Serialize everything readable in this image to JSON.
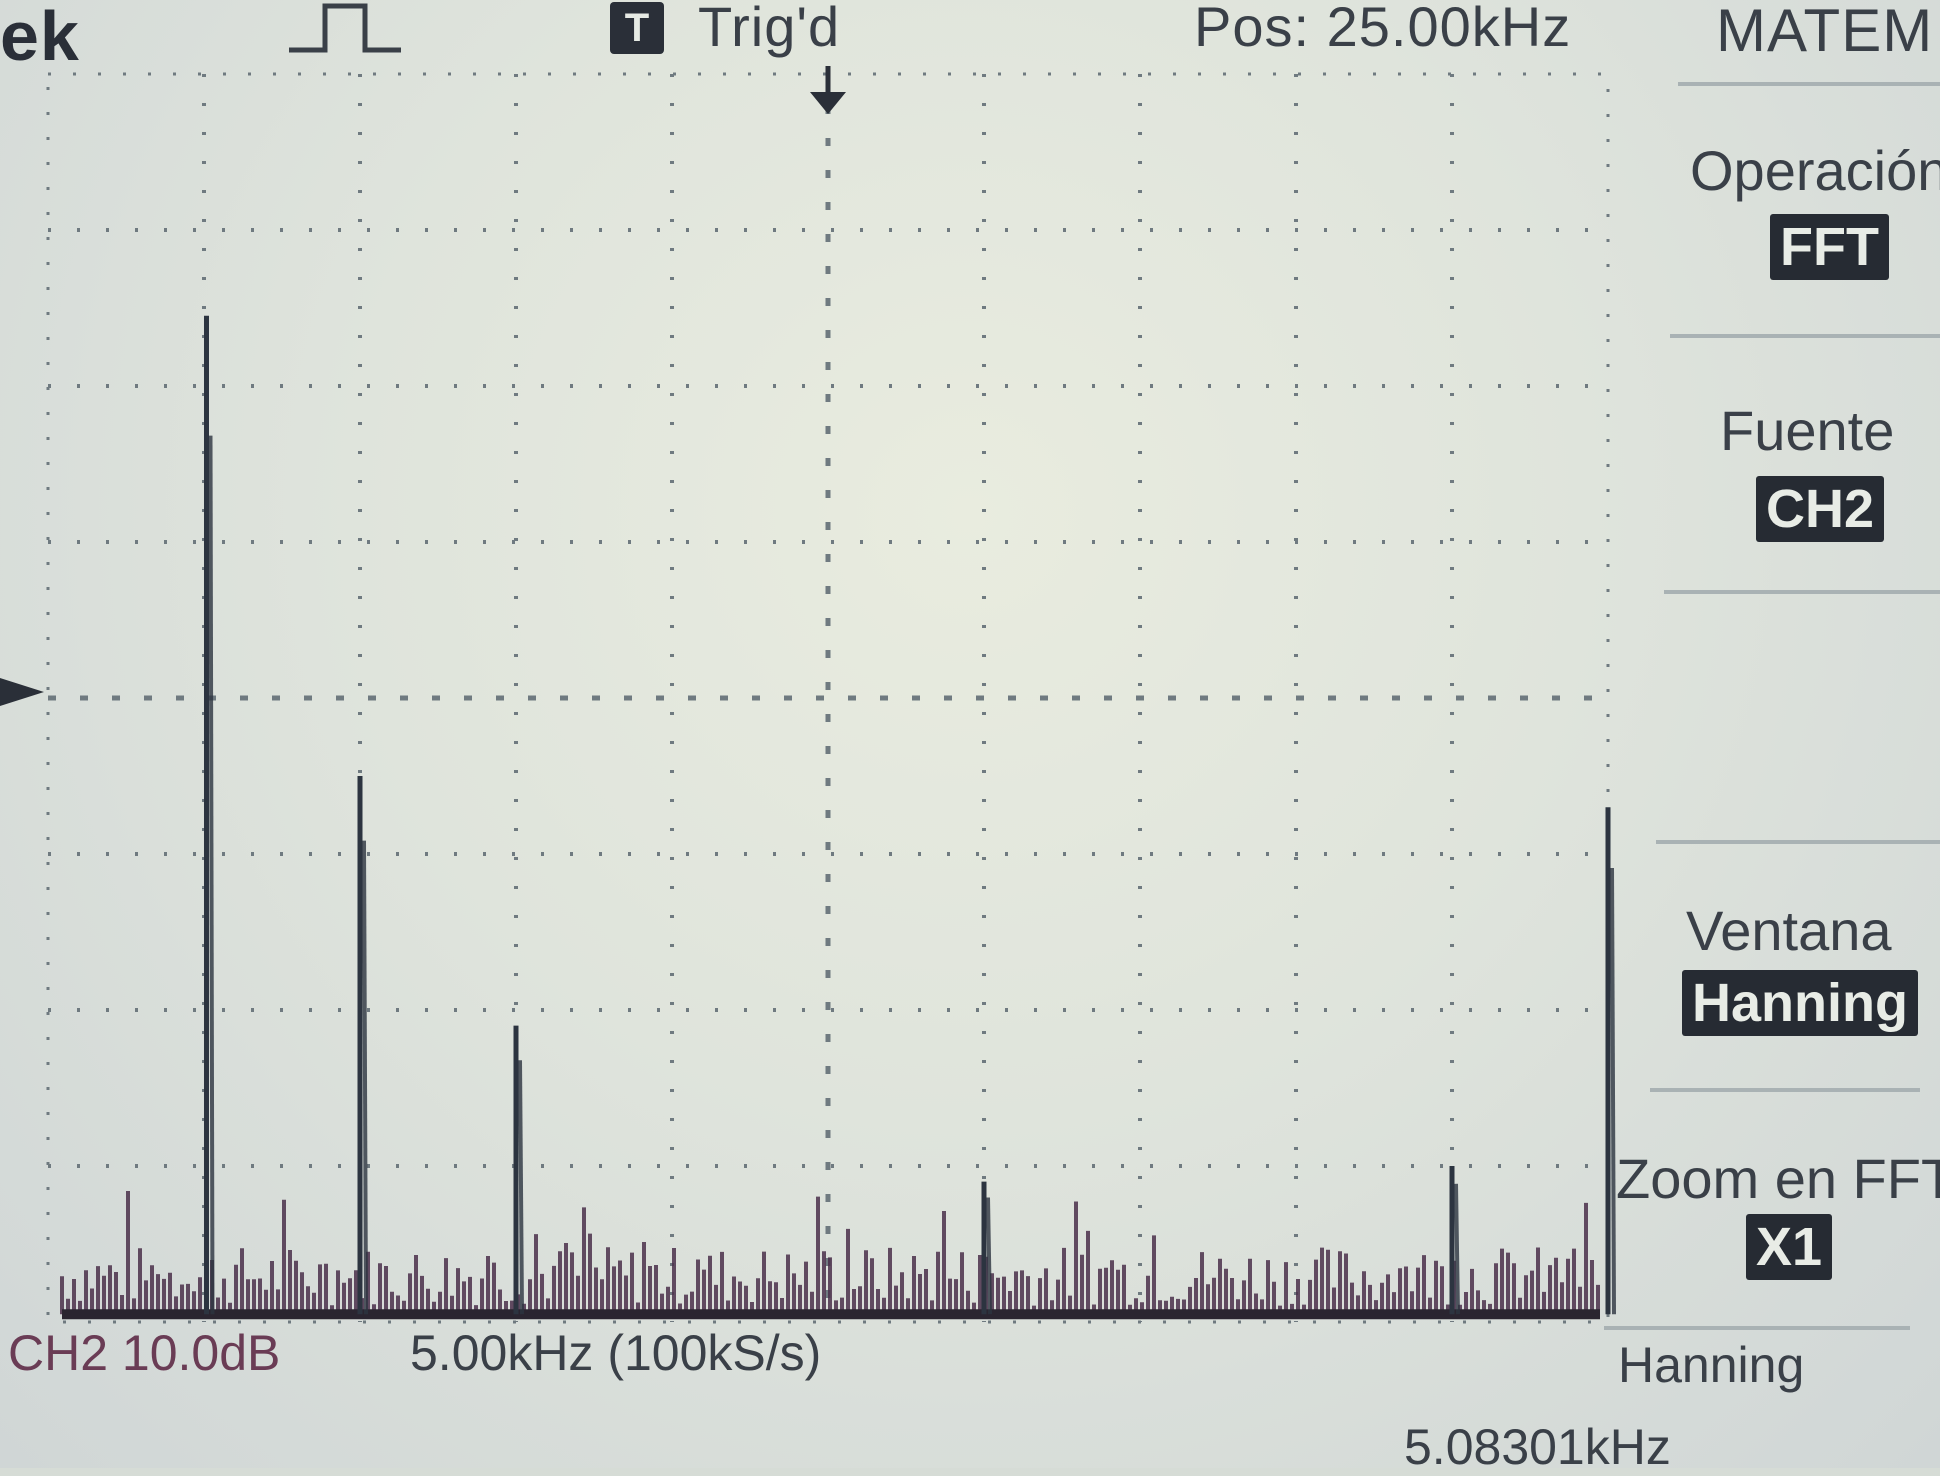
{
  "header": {
    "brand_fragment": "ek",
    "trigger_badge": "T",
    "trigger_status": "Trig'd",
    "position": "Pos: 25.00kHz",
    "menu_title": "MATEM"
  },
  "menu": {
    "items": [
      {
        "label": "Operación",
        "value": "FFT"
      },
      {
        "label": "Fuente",
        "value": "CH2"
      },
      {
        "label": "Ventana",
        "value": "Hanning"
      },
      {
        "label": "Zoom en FFT",
        "value": "X1"
      }
    ]
  },
  "footer": {
    "channel_scale": "CH2 10.0dB",
    "frequency_scale": "5.00kHz (100kS/s)",
    "window": "Hanning",
    "cursor_frequency": "5.08301kHz"
  },
  "colors": {
    "trace": "#2c3440",
    "grid": "#6f7a80",
    "marker": "#2a2f38",
    "noise": "#4a2f4a"
  },
  "chart_data": {
    "type": "line",
    "x_unit": "kHz",
    "y_unit": "div",
    "xlim": [
      0,
      50
    ],
    "ylim": [
      0,
      8
    ],
    "divisions": {
      "x": 10,
      "y": 8
    },
    "peaks": [
      {
        "x": 5.08,
        "y": 6.45
      },
      {
        "x": 10.0,
        "y": 3.5
      },
      {
        "x": 15.0,
        "y": 1.9
      },
      {
        "x": 30.0,
        "y": 0.9
      },
      {
        "x": 45.0,
        "y": 1.0
      },
      {
        "x": 50.0,
        "y": 3.3
      }
    ],
    "noise_floor": 0.35
  }
}
